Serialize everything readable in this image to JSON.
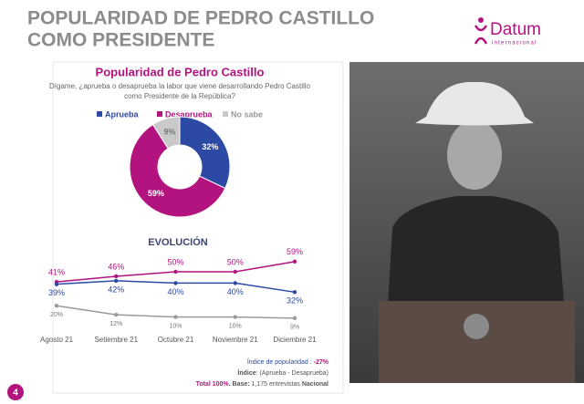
{
  "header": {
    "title_lines": [
      "POPULARIDAD DE PEDRO CASTILLO",
      "COMO PRESIDENTE"
    ],
    "logo": "Datum",
    "logo_sub": "internacional"
  },
  "page_number": "4",
  "chart_data": [
    {
      "type": "pie",
      "donut": true,
      "title": "Popularidad de Pedro Castillo",
      "subtitle": [
        "Dígame, ¿aprueba o desaprueba la labor que viene desarrollando Pedro Castillo",
        "como Presidente de la República?"
      ],
      "categories": [
        "Aprueba",
        "Desaprueba",
        "No sabe"
      ],
      "values": [
        32,
        59,
        9
      ],
      "value_labels": [
        "32%",
        "59%",
        "9%"
      ],
      "colors": [
        "#2c49a4",
        "#b3137f",
        "#c9c9c9"
      ],
      "legend": "top"
    },
    {
      "type": "line",
      "title": "EVOLUCIÓN",
      "categories": [
        "Agosto 21",
        "Setiembre 21",
        "Octubre 21",
        "Noviembre 21",
        "Diciembre 21"
      ],
      "ylim": [
        0,
        100
      ],
      "series": [
        {
          "color": "#b3137f",
          "values": [
            41,
            46,
            50,
            50,
            59
          ],
          "value_labels": [
            "41%",
            "46%",
            "50%",
            "50%",
            "59%"
          ]
        },
        {
          "color": "#2c49a4",
          "values": [
            39,
            42,
            40,
            40,
            32
          ],
          "value_labels": [
            "39%",
            "42%",
            "40%",
            "40%",
            "32%"
          ]
        },
        {
          "color": "#9a9a9a",
          "values": [
            20,
            12,
            10,
            10,
            9
          ],
          "value_labels": [
            "20%",
            "12%",
            "10%",
            "10%",
            "9%"
          ]
        }
      ]
    }
  ],
  "footnote": {
    "popularity_label": "Índice de popularidad :",
    "popularity_value": "-27%",
    "index_label": "Índice",
    "index_formula": ": (Aprueba - Desaprueba)",
    "total": "Total 100%.",
    "base_label": "Base:",
    "base_text": "1,175 entrevistas",
    "base_scope": "Nacional"
  }
}
